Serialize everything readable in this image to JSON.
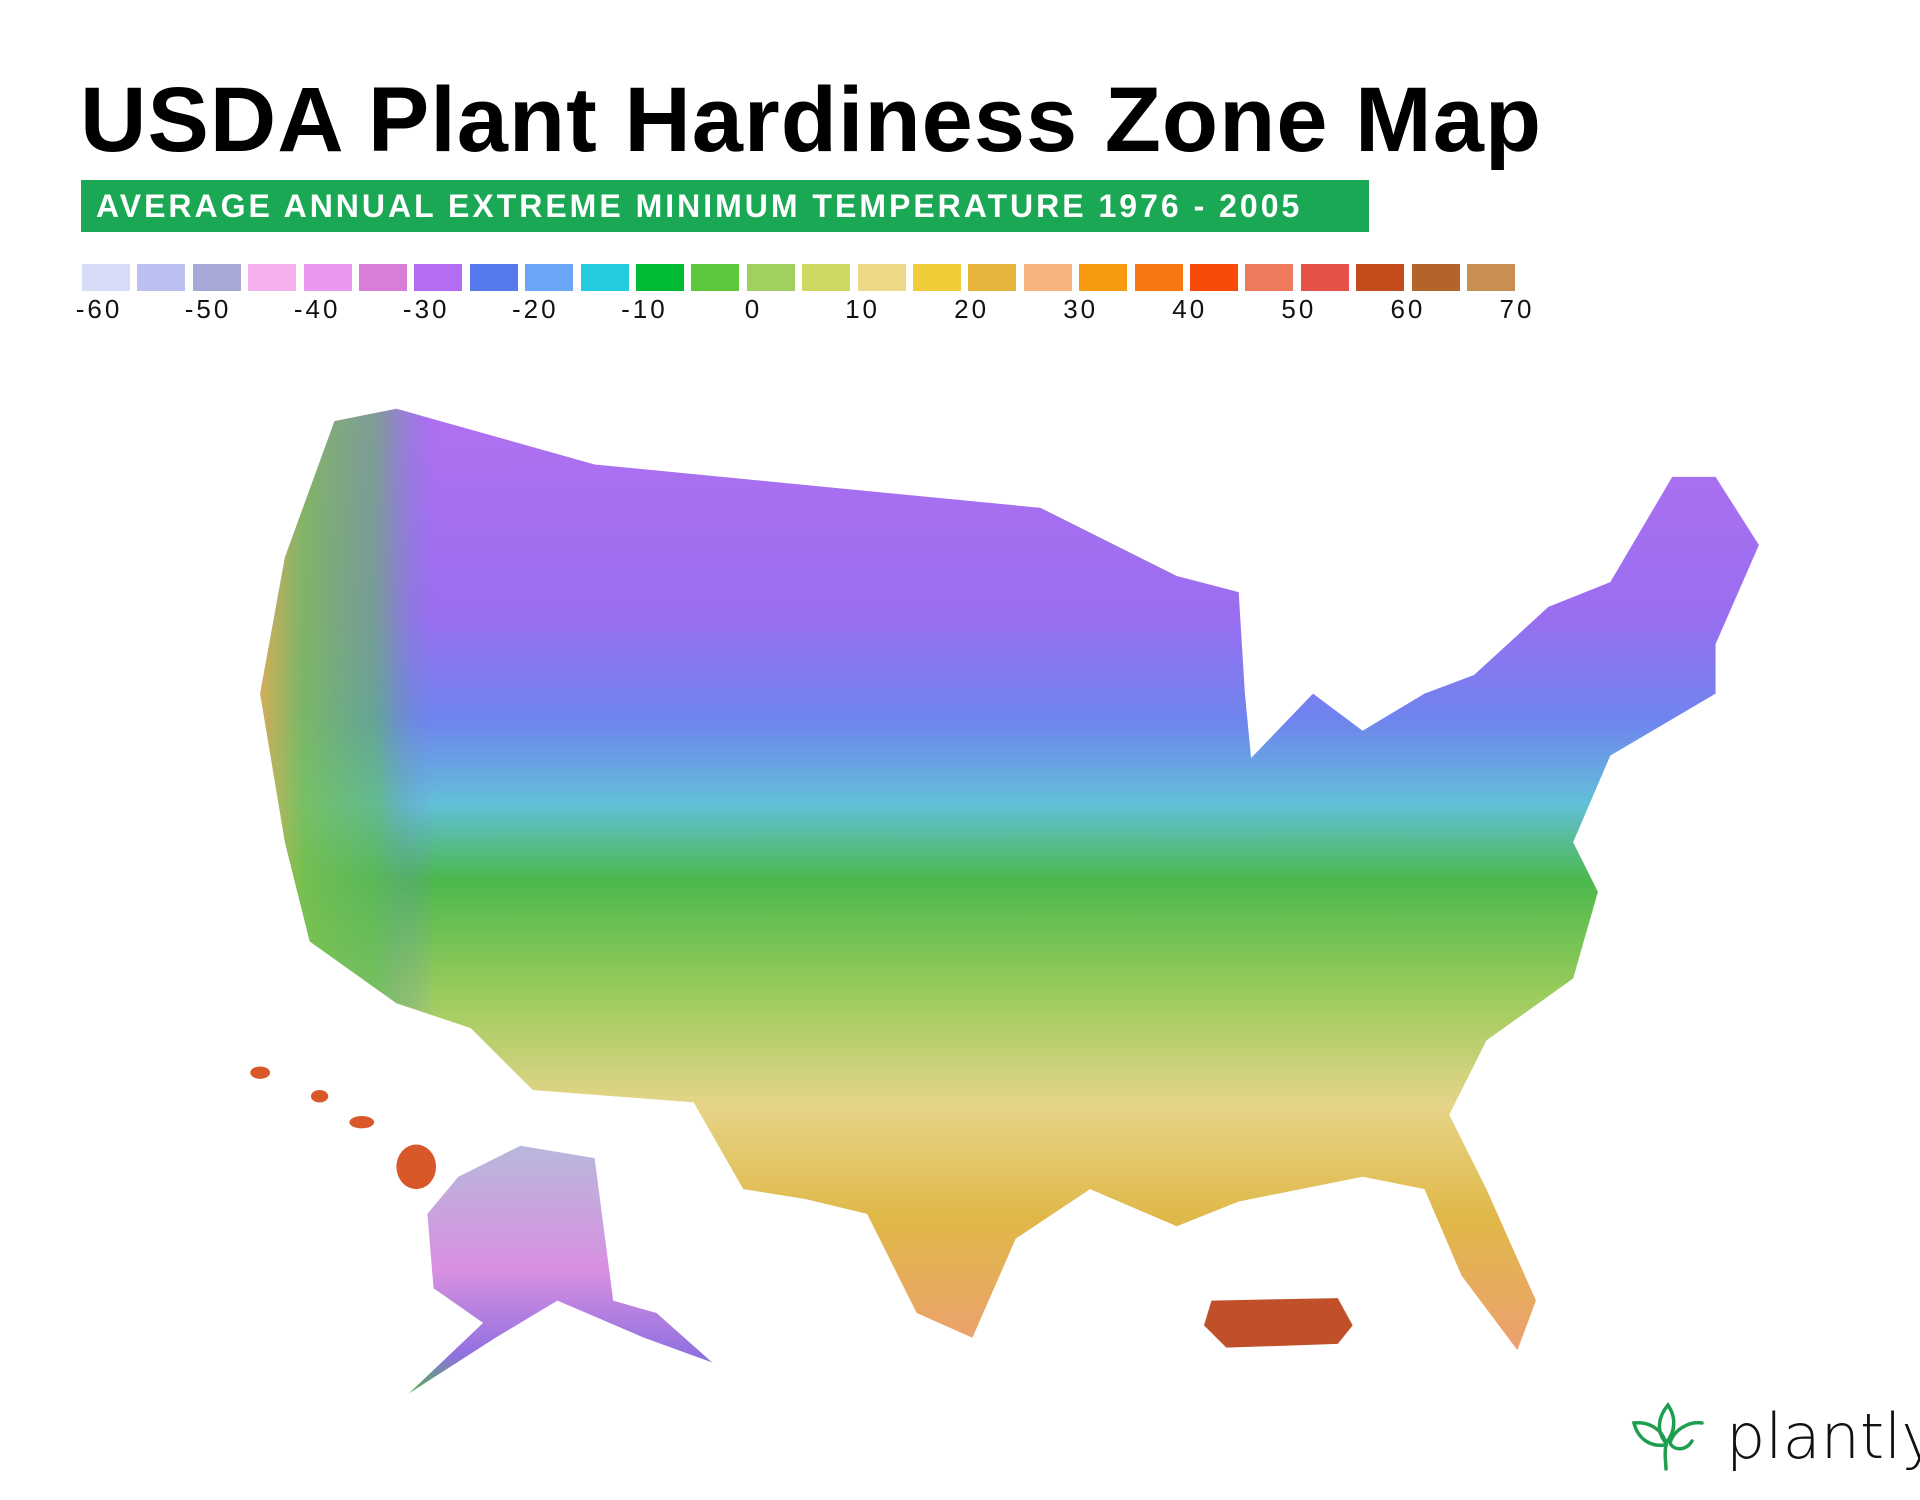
{
  "title": "USDA Plant Hardiness Zone Map",
  "subtitle": "AVERAGE ANNUAL EXTREME MINIMUM TEMPERATURE 1976 - 2005",
  "legend": {
    "colors": [
      "#d8dcf8",
      "#bcc0f0",
      "#a8a8d8",
      "#f5b0ee",
      "#e898ee",
      "#d87ed8",
      "#b46cf5",
      "#5679ec",
      "#6aa6f8",
      "#22cbe0",
      "#00bb33",
      "#5ec83c",
      "#a2d060",
      "#ccd860",
      "#eed888",
      "#f0cc38",
      "#e4b43c",
      "#f8b47c",
      "#f89a10",
      "#f87710",
      "#f84a08",
      "#ee7a5c",
      "#e45248",
      "#c44c1c",
      "#b46428",
      "#c89050"
    ],
    "labels": [
      "-60",
      "-50",
      "-40",
      "-30",
      "-20",
      "-10",
      "0",
      "10",
      "20",
      "30",
      "40",
      "50",
      "60",
      "70"
    ]
  },
  "brand": {
    "name": "plantly",
    "color": "#1e9e4f"
  }
}
